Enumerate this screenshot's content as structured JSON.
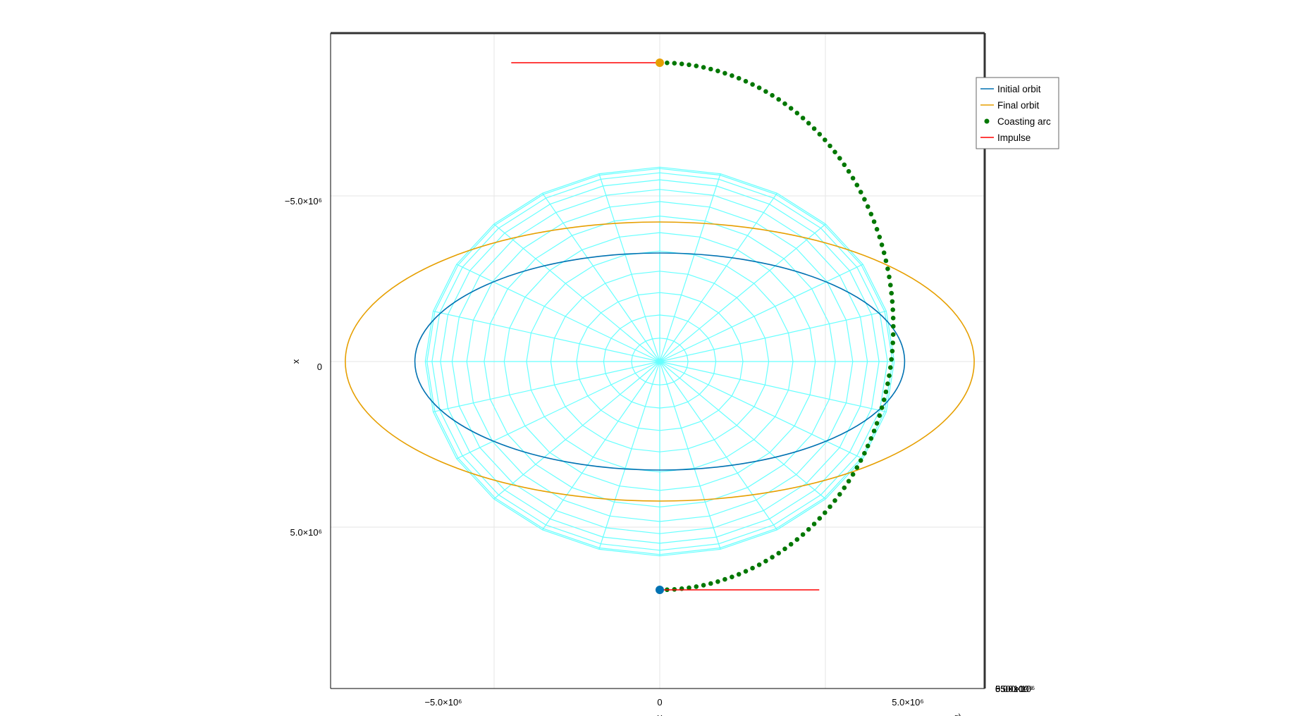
{
  "chart_data": {
    "type": "line",
    "title": "",
    "projection": "3d orthographic, looking down the z axis (x vertical, y horizontal)",
    "axes": {
      "horizontal": {
        "label": "y",
        "range": [
          -7000000,
          7000000
        ],
        "ticks": [
          -5000000,
          0,
          5000000
        ],
        "tick_labels": [
          "−5.0×10⁶",
          "0",
          "5.0×10⁶"
        ]
      },
      "vertical": {
        "label": "x",
        "range": [
          -7000000,
          7000000
        ],
        "inverted": true,
        "ticks": [
          -5000000,
          0,
          5000000
        ],
        "tick_labels": [
          "−5.0×10⁶",
          "0",
          "5.0×10⁶"
        ]
      },
      "depth": {
        "label": "z",
        "tick_labels": [
          "−5.0×10⁶",
          "0",
          "5.0×10⁶"
        ]
      }
    },
    "grid": true,
    "legend": {
      "position": "top-right",
      "entries": [
        {
          "label": "Initial orbit",
          "color": "#0072b2",
          "marker": "line"
        },
        {
          "label": "Final orbit",
          "color": "#e69f00",
          "marker": "line"
        },
        {
          "label": "Coasting arc",
          "color": "#007700",
          "marker": "dot"
        },
        {
          "label": "Impulse",
          "color": "#ff0000",
          "marker": "line"
        }
      ]
    },
    "earth": {
      "color": "#66ffff",
      "equatorial_radius": 6378137,
      "polar_radius": 6356752,
      "meridians": 24,
      "parallels": 13
    },
    "series": [
      {
        "name": "Initial orbit",
        "kind": "ellipse",
        "center_x": 0,
        "center_y": 0,
        "semi_x": 7000000,
        "semi_y": 8800000,
        "color": "#0072b2"
      },
      {
        "name": "Final orbit",
        "kind": "ellipse",
        "center_x": 0,
        "center_y": 0,
        "semi_x": 9000000,
        "semi_y": 11300000,
        "color": "#e69f00"
      },
      {
        "name": "Coasting arc",
        "kind": "half-ellipse",
        "start_x": 7000000,
        "end_x": -9000000,
        "max_y": 5000000,
        "points": 100,
        "color": "#007700"
      },
      {
        "name": "Impulse",
        "kind": "segments",
        "color": "#ff0000",
        "segments": [
          {
            "x": 7000000,
            "y_from": 0,
            "y_to": 5800000
          },
          {
            "x": -9000000,
            "y_from": 0,
            "y_to": -5400000
          }
        ]
      }
    ],
    "markers": [
      {
        "name": "initial-position",
        "x": 7000000,
        "y": 0,
        "color": "#0072b2"
      },
      {
        "name": "final-position",
        "x": -9000000,
        "y": 0,
        "color": "#e69f00"
      }
    ],
    "corner_overlap_label": "6500×10⁶"
  }
}
